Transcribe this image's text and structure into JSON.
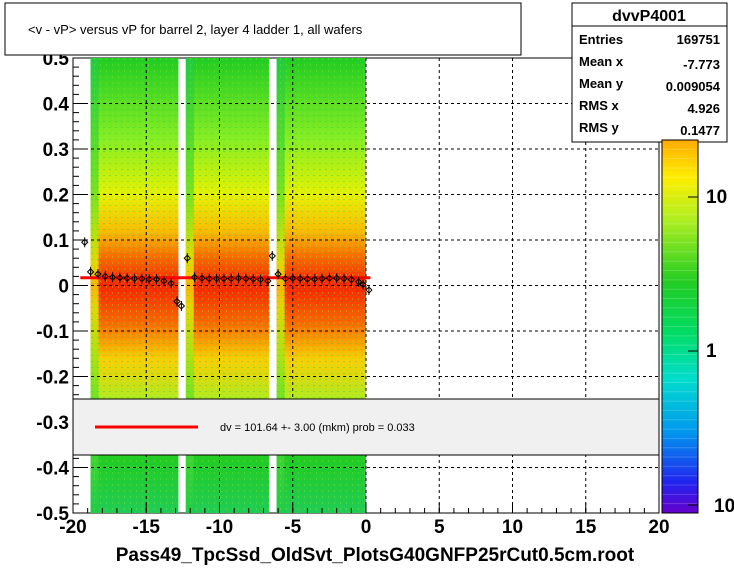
{
  "chart_data": {
    "type": "heatmap",
    "title": "<v - vP>       versus   vP for barrel 2, layer 4 ladder 1, all wafers",
    "xlabel": "Pass49_TpcSsd_OldSvt_PlotsG40GNFP25rCut0.5cm.root",
    "xlim": [
      -20,
      20
    ],
    "ylim": [
      -0.5,
      0.5
    ],
    "x_ticks": [
      "-20",
      "-15",
      "-10",
      "-5",
      "0",
      "5",
      "10",
      "15",
      "20"
    ],
    "y_ticks": [
      "-0.5",
      "-0.4",
      "-0.3",
      "-0.2",
      "-0.1",
      "0",
      "0.1",
      "0.2",
      "0.3",
      "0.4",
      "0.5"
    ],
    "grid": true,
    "colorbar": {
      "scale": "log",
      "ticks": [
        "1",
        "10"
      ],
      "bottom_label": "10"
    },
    "occupied_x_ranges": [
      [
        -18.8,
        -12.8
      ],
      [
        -12.3,
        -6.6
      ],
      [
        -6.1,
        0
      ]
    ],
    "profile": {
      "x": [
        -19.2,
        -18.8,
        -18.3,
        -17.8,
        -17.3,
        -16.8,
        -16.3,
        -15.8,
        -15.3,
        -14.8,
        -14.3,
        -13.8,
        -13.3,
        -12.9,
        -12.6,
        -12.2,
        -11.7,
        -11.2,
        -10.7,
        -10.2,
        -9.7,
        -9.2,
        -8.7,
        -8.2,
        -7.7,
        -7.2,
        -6.7,
        -6.4,
        -6.0,
        -5.5,
        -5.0,
        -4.5,
        -4.0,
        -3.5,
        -3.0,
        -2.5,
        -2.0,
        -1.5,
        -1.0,
        -0.5,
        -0.2,
        0.2
      ],
      "y": [
        0.095,
        0.03,
        0.025,
        0.02,
        0.018,
        0.017,
        0.016,
        0.015,
        0.015,
        0.014,
        0.014,
        0.01,
        0.005,
        -0.035,
        -0.045,
        0.06,
        0.018,
        0.016,
        0.015,
        0.015,
        0.015,
        0.015,
        0.016,
        0.015,
        0.014,
        0.013,
        0.01,
        0.065,
        0.025,
        0.015,
        0.016,
        0.015,
        0.014,
        0.014,
        0.015,
        0.016,
        0.016,
        0.015,
        0.013,
        0.008,
        0.002,
        -0.01
      ]
    },
    "fit_line": {
      "x": [
        -19.5,
        0.3
      ],
      "y": [
        0.017,
        0.017
      ],
      "color": "#ff0000"
    },
    "fit_legend": "dv =  101.64 +-  3.00 (mkm) prob = 0.033"
  },
  "stats": {
    "title": "dvvP4001",
    "rows": [
      {
        "label": "Entries",
        "value": "169751"
      },
      {
        "label": "Mean x",
        "value": "-7.773"
      },
      {
        "label": "Mean y",
        "value": "0.009054"
      },
      {
        "label": "RMS x",
        "value": "4.926"
      },
      {
        "label": "RMS y",
        "value": "0.1477"
      }
    ]
  }
}
